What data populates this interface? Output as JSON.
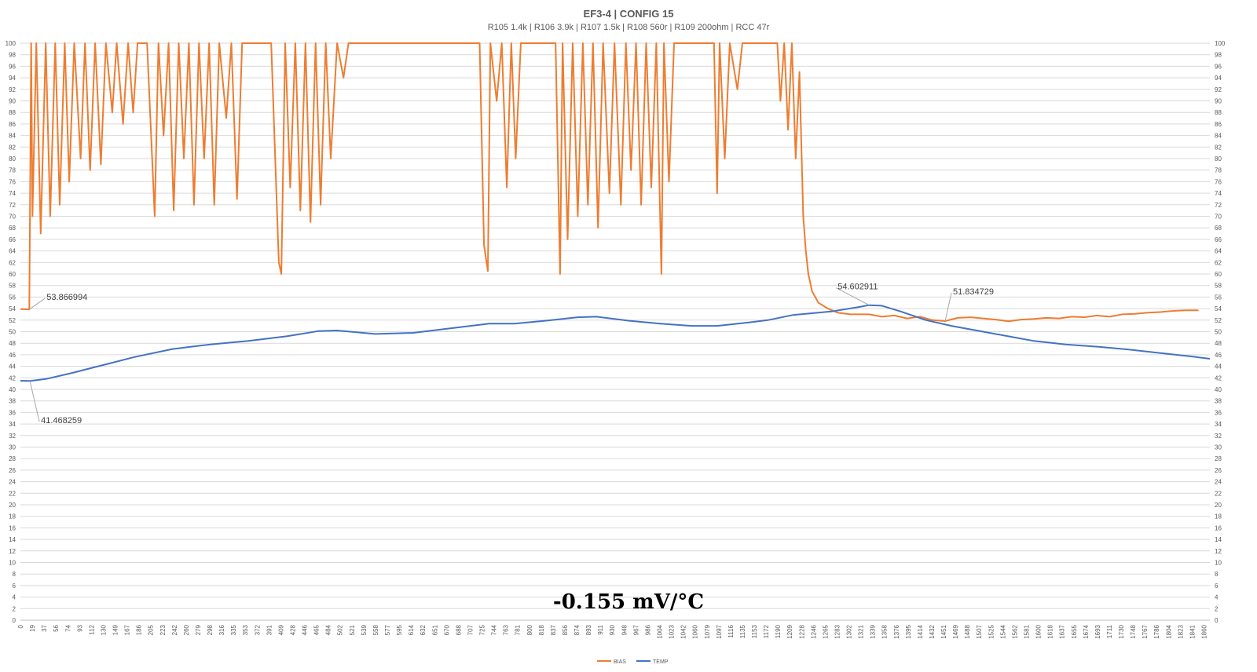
{
  "chart_data": {
    "type": "line",
    "title": "EF3-4 | CONFIG 15",
    "subtitle": "R105 1.4k | R106 3.9k | R107 1.5k | R108 560r | R109 200ohm | RCC 47r",
    "annotation": "-0.155 mV/°C",
    "xlabel": "",
    "ylabel": "",
    "ylim": [
      0,
      100
    ],
    "xlim": [
      0,
      1878
    ],
    "y_ticks_step": 2,
    "x_tick_labels": [
      "0",
      "19",
      "37",
      "56",
      "74",
      "93",
      "112",
      "130",
      "149",
      "167",
      "186",
      "205",
      "223",
      "242",
      "260",
      "279",
      "298",
      "316",
      "335",
      "353",
      "372",
      "391",
      "409",
      "428",
      "446",
      "465",
      "484",
      "502",
      "521",
      "539",
      "558",
      "577",
      "595",
      "614",
      "632",
      "651",
      "670",
      "688",
      "707",
      "725",
      "744",
      "763",
      "781",
      "800",
      "818",
      "837",
      "856",
      "874",
      "893",
      "911",
      "930",
      "948",
      "967",
      "986",
      "1004",
      "1023",
      "1042",
      "1060",
      "1079",
      "1097",
      "1116",
      "1135",
      "1153",
      "1172",
      "1190",
      "1209",
      "1228",
      "1246",
      "1265",
      "1283",
      "1302",
      "1321",
      "1339",
      "1358",
      "1376",
      "1395",
      "1414",
      "1432",
      "1451",
      "1469",
      "1488",
      "1507",
      "1525",
      "1544",
      "1562",
      "1581",
      "1600",
      "1618",
      "1637",
      "1655",
      "1674",
      "1693",
      "1711",
      "1730",
      "1748",
      "1767",
      "1786",
      "1804",
      "1823",
      "1841",
      "1860"
    ],
    "grid": true,
    "legend": "bottom-center",
    "series": [
      {
        "name": "BIAS",
        "color": "#ed7d31",
        "points": [
          [
            0,
            53.9
          ],
          [
            14,
            53.87
          ],
          [
            17,
            100
          ],
          [
            19,
            70
          ],
          [
            25,
            100
          ],
          [
            32,
            67
          ],
          [
            40,
            100
          ],
          [
            47,
            70
          ],
          [
            55,
            100
          ],
          [
            62,
            72
          ],
          [
            70,
            100
          ],
          [
            77,
            76
          ],
          [
            85,
            100
          ],
          [
            95,
            80
          ],
          [
            102,
            100
          ],
          [
            110,
            78
          ],
          [
            118,
            100
          ],
          [
            127,
            79
          ],
          [
            135,
            100
          ],
          [
            145,
            88
          ],
          [
            152,
            100
          ],
          [
            162,
            86
          ],
          [
            170,
            100
          ],
          [
            178,
            88
          ],
          [
            185,
            100
          ],
          [
            200,
            100
          ],
          [
            212,
            70
          ],
          [
            218,
            100
          ],
          [
            226,
            84
          ],
          [
            234,
            100
          ],
          [
            242,
            71
          ],
          [
            250,
            100
          ],
          [
            258,
            80
          ],
          [
            266,
            100
          ],
          [
            274,
            72
          ],
          [
            282,
            100
          ],
          [
            290,
            80
          ],
          [
            298,
            100
          ],
          [
            306,
            72
          ],
          [
            314,
            100
          ],
          [
            325,
            87
          ],
          [
            333,
            100
          ],
          [
            342,
            73
          ],
          [
            350,
            100
          ],
          [
            396,
            100
          ],
          [
            408,
            62
          ],
          [
            412,
            60
          ],
          [
            418,
            100
          ],
          [
            426,
            75
          ],
          [
            434,
            100
          ],
          [
            442,
            71
          ],
          [
            450,
            100
          ],
          [
            458,
            69
          ],
          [
            466,
            100
          ],
          [
            474,
            72
          ],
          [
            482,
            100
          ],
          [
            490,
            80
          ],
          [
            500,
            100
          ],
          [
            510,
            94
          ],
          [
            518,
            100
          ],
          [
            542,
            100
          ],
          [
            725,
            100
          ],
          [
            732,
            65
          ],
          [
            738,
            60.5
          ],
          [
            742,
            100
          ],
          [
            752,
            90
          ],
          [
            760,
            100
          ],
          [
            768,
            75
          ],
          [
            775,
            100
          ],
          [
            782,
            80
          ],
          [
            790,
            100
          ],
          [
            845,
            100
          ],
          [
            852,
            60
          ],
          [
            856,
            100
          ],
          [
            864,
            66
          ],
          [
            872,
            100
          ],
          [
            880,
            70
          ],
          [
            888,
            100
          ],
          [
            896,
            72
          ],
          [
            904,
            100
          ],
          [
            912,
            68
          ],
          [
            920,
            100
          ],
          [
            930,
            74
          ],
          [
            938,
            100
          ],
          [
            948,
            72
          ],
          [
            956,
            100
          ],
          [
            964,
            78
          ],
          [
            972,
            100
          ],
          [
            980,
            72
          ],
          [
            988,
            100
          ],
          [
            996,
            75
          ],
          [
            1004,
            100
          ],
          [
            1012,
            60
          ],
          [
            1016,
            100
          ],
          [
            1024,
            76
          ],
          [
            1032,
            100
          ],
          [
            1095,
            100
          ],
          [
            1100,
            74
          ],
          [
            1104,
            100
          ],
          [
            1112,
            80
          ],
          [
            1120,
            100
          ],
          [
            1132,
            92
          ],
          [
            1140,
            100
          ],
          [
            1195,
            100
          ],
          [
            1200,
            90
          ],
          [
            1206,
            100
          ],
          [
            1212,
            85
          ],
          [
            1218,
            100
          ],
          [
            1224,
            80
          ],
          [
            1230,
            95
          ],
          [
            1236,
            70
          ],
          [
            1240,
            64
          ],
          [
            1244,
            60
          ],
          [
            1250,
            57
          ],
          [
            1260,
            55
          ],
          [
            1275,
            54
          ],
          [
            1290,
            53.3
          ],
          [
            1310,
            53
          ],
          [
            1340,
            53
          ],
          [
            1360,
            52.6
          ],
          [
            1380,
            52.8
          ],
          [
            1400,
            52.3
          ],
          [
            1420,
            52.6
          ],
          [
            1440,
            52.0
          ],
          [
            1460,
            51.83
          ],
          [
            1480,
            52.4
          ],
          [
            1500,
            52.5
          ],
          [
            1520,
            52.3
          ],
          [
            1540,
            52.1
          ],
          [
            1560,
            51.8
          ],
          [
            1580,
            52.1
          ],
          [
            1600,
            52.2
          ],
          [
            1620,
            52.4
          ],
          [
            1640,
            52.3
          ],
          [
            1660,
            52.6
          ],
          [
            1680,
            52.5
          ],
          [
            1700,
            52.8
          ],
          [
            1720,
            52.6
          ],
          [
            1740,
            53.0
          ],
          [
            1760,
            53.1
          ],
          [
            1780,
            53.3
          ],
          [
            1800,
            53.4
          ],
          [
            1820,
            53.6
          ],
          [
            1840,
            53.7
          ],
          [
            1860,
            53.7
          ]
        ]
      },
      {
        "name": "TEMP",
        "color": "#4472c4",
        "points": [
          [
            0,
            41.5
          ],
          [
            15,
            41.47
          ],
          [
            40,
            41.8
          ],
          [
            80,
            42.8
          ],
          [
            130,
            44.2
          ],
          [
            180,
            45.6
          ],
          [
            240,
            47.0
          ],
          [
            300,
            47.8
          ],
          [
            360,
            48.4
          ],
          [
            420,
            49.2
          ],
          [
            470,
            50.1
          ],
          [
            500,
            50.2
          ],
          [
            560,
            49.6
          ],
          [
            620,
            49.8
          ],
          [
            680,
            50.6
          ],
          [
            740,
            51.4
          ],
          [
            780,
            51.4
          ],
          [
            830,
            51.9
          ],
          [
            880,
            52.5
          ],
          [
            910,
            52.6
          ],
          [
            960,
            51.9
          ],
          [
            1010,
            51.4
          ],
          [
            1060,
            51.0
          ],
          [
            1100,
            51.0
          ],
          [
            1150,
            51.6
          ],
          [
            1180,
            52.0
          ],
          [
            1220,
            52.9
          ],
          [
            1280,
            53.5
          ],
          [
            1320,
            54.2
          ],
          [
            1340,
            54.6
          ],
          [
            1360,
            54.5
          ],
          [
            1390,
            53.5
          ],
          [
            1430,
            52.0
          ],
          [
            1470,
            51.0
          ],
          [
            1520,
            50.0
          ],
          [
            1560,
            49.2
          ],
          [
            1600,
            48.4
          ],
          [
            1650,
            47.8
          ],
          [
            1700,
            47.4
          ],
          [
            1750,
            46.9
          ],
          [
            1800,
            46.3
          ],
          [
            1850,
            45.7
          ],
          [
            1878,
            45.3
          ]
        ]
      }
    ],
    "data_labels": [
      {
        "series": "BIAS",
        "x": 14,
        "y": 53.87,
        "text": "53.866994"
      },
      {
        "series": "TEMP",
        "x": 15,
        "y": 41.47,
        "text": "41.468259"
      },
      {
        "series": "TEMP",
        "x": 1340,
        "y": 54.6,
        "text": "54.602911"
      },
      {
        "series": "BIAS",
        "x": 1460,
        "y": 51.83,
        "text": "51.834729"
      }
    ]
  }
}
